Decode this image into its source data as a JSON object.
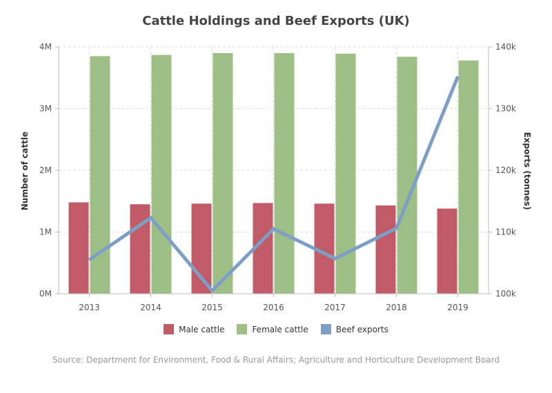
{
  "chart_data": {
    "type": "bar",
    "title": "Cattle Holdings and Beef Exports (UK)",
    "categories": [
      "2013",
      "2014",
      "2015",
      "2016",
      "2017",
      "2018",
      "2019"
    ],
    "series": [
      {
        "name": "Male cattle",
        "type": "bar",
        "axis": "left",
        "color": "#c25b68",
        "values": [
          1480000,
          1450000,
          1460000,
          1470000,
          1460000,
          1430000,
          1380000
        ]
      },
      {
        "name": "Female cattle",
        "type": "bar",
        "axis": "left",
        "color": "#9dbf85",
        "values": [
          3850000,
          3870000,
          3900000,
          3900000,
          3890000,
          3840000,
          3780000
        ]
      },
      {
        "name": "Beef exports",
        "type": "line",
        "axis": "right",
        "color": "#7d9fc6",
        "values": [
          105500,
          112300,
          100500,
          110500,
          105700,
          110600,
          135200
        ]
      }
    ],
    "yleft": {
      "label": "Number of cattle",
      "ylim": [
        0,
        4000000
      ],
      "ticks": [
        0,
        1000000,
        2000000,
        3000000,
        4000000
      ],
      "tick_labels": [
        "0M",
        "1M",
        "2M",
        "3M",
        "4M"
      ]
    },
    "yright": {
      "label": "Exports (tonnes)",
      "ylim": [
        100000,
        140000
      ],
      "ticks": [
        100000,
        110000,
        120000,
        130000,
        140000
      ],
      "tick_labels": [
        "100k",
        "110k",
        "120k",
        "130k",
        "140k"
      ]
    },
    "grid": true,
    "legend_position": "bottom",
    "source": "Source: Department for Environment, Food & Rural Affairs; Agriculture and Horticulture Development Board"
  }
}
